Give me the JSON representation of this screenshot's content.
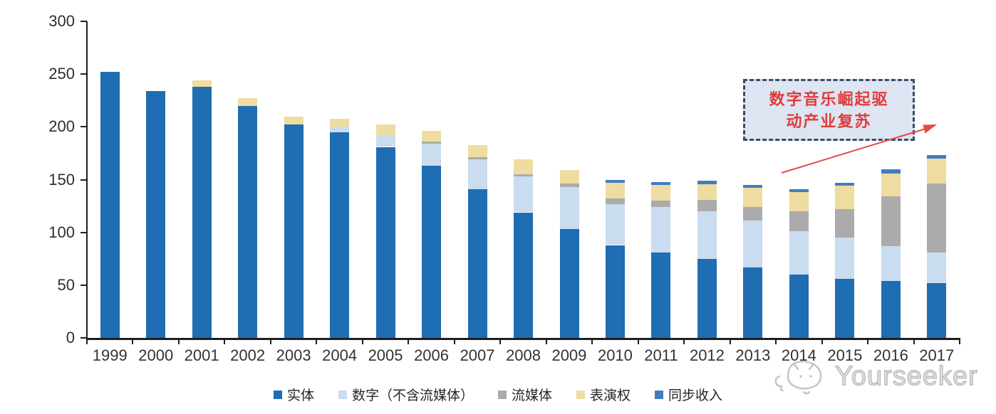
{
  "chart_data": {
    "type": "bar",
    "stacked": true,
    "title": "",
    "xlabel": "",
    "ylabel": "",
    "ylim": [
      0,
      300
    ],
    "yticks": [
      0,
      50,
      100,
      150,
      200,
      250,
      300
    ],
    "grid": false,
    "legend_position": "bottom",
    "categories": [
      "1999",
      "2000",
      "2001",
      "2002",
      "2003",
      "2004",
      "2005",
      "2006",
      "2007",
      "2008",
      "2009",
      "2010",
      "2011",
      "2012",
      "2013",
      "2014",
      "2015",
      "2016",
      "2017"
    ],
    "series": [
      {
        "key": "physical",
        "name": "实体",
        "color": "#1f6db2",
        "values": [
          252,
          234,
          238,
          220,
          202,
          195,
          181,
          163,
          141,
          119,
          103,
          88,
          81,
          75,
          67,
          60,
          56,
          54,
          52
        ]
      },
      {
        "key": "digital-excl-streaming",
        "name": "数字（不含流媒体）",
        "color": "#c9dcf0",
        "values": [
          0,
          0,
          0,
          0,
          0,
          5,
          11,
          21,
          28,
          34,
          40,
          39,
          43,
          45,
          44,
          41,
          39,
          33,
          29
        ]
      },
      {
        "key": "streaming",
        "name": "流媒体",
        "color": "#ababab",
        "values": [
          0,
          0,
          0,
          0,
          0,
          0,
          0,
          2,
          2,
          2,
          3,
          5,
          6,
          11,
          13,
          19,
          27,
          47,
          65
        ]
      },
      {
        "key": "performance-rights",
        "name": "表演权",
        "color": "#efdca0",
        "values": [
          0,
          0,
          6,
          7,
          8,
          8,
          10,
          10,
          12,
          14,
          13,
          15,
          15,
          15,
          18,
          18,
          22,
          22,
          24
        ]
      },
      {
        "key": "sync-revenue",
        "name": "同步收入",
        "color": "#3f7ec0",
        "values": [
          0,
          0,
          0,
          0,
          0,
          0,
          0,
          0,
          0,
          0,
          0,
          3,
          3,
          3,
          3,
          3,
          3,
          4,
          3
        ]
      }
    ]
  },
  "annotation": {
    "line1": "数字音乐崛起驱",
    "line2": "动产业复苏",
    "box_fill": "#dce5f1",
    "border_color": "#3b4c66",
    "text_color": "#e23b3c",
    "arrow_color": "#e8474b"
  },
  "watermark": {
    "text": "Yourseeker"
  },
  "axis_color": "#1f1f1f"
}
